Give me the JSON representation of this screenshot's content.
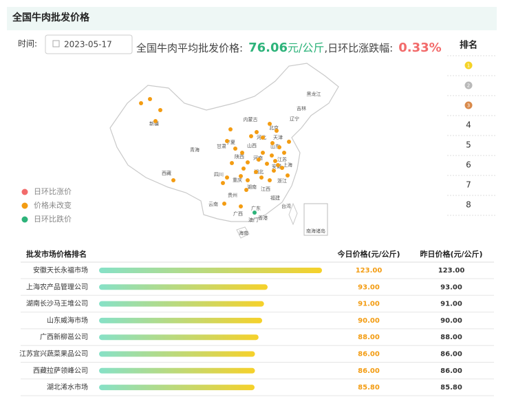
{
  "header": {
    "title": "全国牛肉批发价格"
  },
  "filter": {
    "label": "时间:",
    "date": "2023-05-17"
  },
  "summary": {
    "avg_label": "全国牛肉平均批发价格:",
    "avg": 76.06,
    "unit": "元/公斤",
    "change_label": ",日环比涨跌幅:",
    "change": "0.33%"
  },
  "rank_panel": {
    "title": "排名",
    "ranks": [
      1,
      2,
      3,
      4,
      5,
      6,
      7,
      8
    ]
  },
  "legend": [
    "日环比涨价",
    "价格未改变",
    "日环比跌价"
  ],
  "map": {
    "regions": [
      "黑龙江",
      "吉林",
      "辽宁",
      "内蒙古",
      "新疆",
      "青海",
      "西藏",
      "甘肃",
      "宁夏",
      "山西",
      "河北",
      "北京",
      "天津",
      "山东",
      "河南",
      "陕西",
      "四川",
      "重庆",
      "湖北",
      "安徽",
      "江苏",
      "上海",
      "浙江",
      "湖南",
      "江西",
      "福建",
      "贵州",
      "云南",
      "广西",
      "广东",
      "香港",
      "澳门",
      "台湾",
      "海南",
      "南海诸岛"
    ]
  },
  "chart_data": {
    "type": "bar",
    "title": "批发市场价格排名",
    "today_header": "今日价格(元/公斤)",
    "yesterday_header": "昨日价格(元/公斤)",
    "categories": [
      "安徽天长永福市场",
      "上海农产品管理公司",
      "湖南长沙马王堆公司",
      "山东威海市场",
      "广西新柳邕公司",
      "江苏宜兴蔬菜果品公司",
      "西藏拉萨领峰公司",
      "湖北浠水市场"
    ],
    "values": [
      123,
      93,
      91,
      90,
      88,
      86,
      86,
      85.8
    ],
    "value_labels": [
      "123.00",
      "93.00",
      "91.00",
      "90.00",
      "88.00",
      "86.00",
      "86.00",
      "85.80"
    ],
    "yesterday": [
      "123.00",
      "93.00",
      "91.00",
      "90.00",
      "88.00",
      "86.00",
      "86.00",
      "85.80"
    ]
  }
}
